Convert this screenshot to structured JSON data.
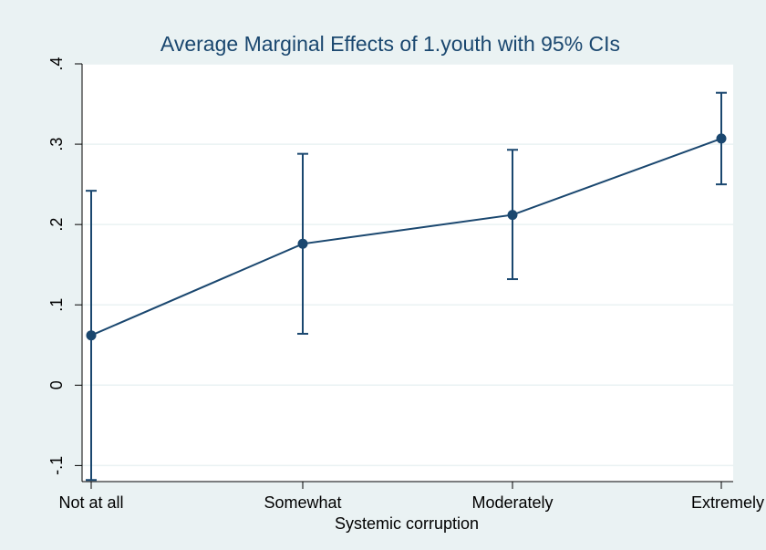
{
  "chart_data": {
    "type": "line",
    "title": "Average Marginal Effects of 1.youth with 95% CIs",
    "xlabel": "Systemic corruption",
    "ylabel": "",
    "categories": [
      "Not at all",
      "Somewhat",
      "Moderately",
      "Extremely"
    ],
    "values": [
      0.062,
      0.176,
      0.212,
      0.307
    ],
    "ci_lower": [
      -0.118,
      0.064,
      0.132,
      0.25
    ],
    "ci_upper": [
      0.242,
      0.288,
      0.293,
      0.364
    ],
    "ylim": [
      -0.12,
      0.4
    ],
    "yticks": [
      -0.1,
      0,
      0.1,
      0.2,
      0.3,
      0.4
    ],
    "ytick_labels": [
      "-.1",
      "0",
      ".1",
      ".2",
      ".3",
      ".4"
    ],
    "grid": true,
    "colors": {
      "outer_background": "#eaf2f3",
      "plot_background": "#ffffff",
      "series": "#1a476f",
      "grid": "#eaf2f3",
      "title": "#1a476f"
    }
  }
}
